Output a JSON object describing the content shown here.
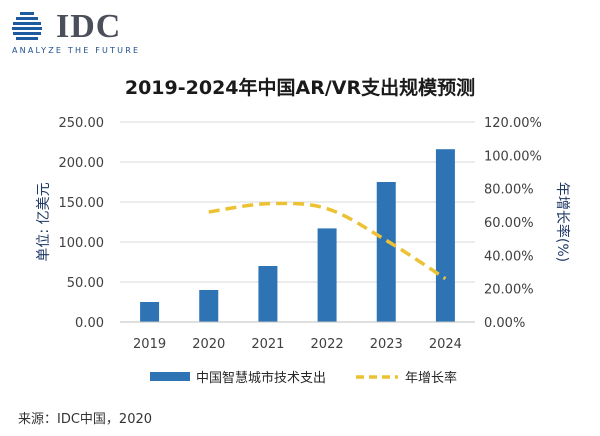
{
  "brand": {
    "name": "IDC",
    "tagline": "ANALYZE THE FUTURE",
    "color": "#1e5aa0"
  },
  "footer": {
    "source": "来源：IDC中国，2020"
  },
  "chart_data": {
    "type": "bar",
    "title": "2019-2024年中国AR/VR支出规模预测",
    "categories": [
      "2019",
      "2020",
      "2021",
      "2022",
      "2023",
      "2024"
    ],
    "ylabel": "单位: 亿美元",
    "y2label": "年增长率(%)",
    "ylim": [
      0,
      250
    ],
    "yticks": [
      "0.00",
      "50.00",
      "100.00",
      "150.00",
      "200.00",
      "250.00"
    ],
    "y2lim": [
      0,
      120
    ],
    "y2ticks": [
      "0.00%",
      "20.00%",
      "40.00%",
      "60.00%",
      "80.00%",
      "100.00%",
      "120.00%"
    ],
    "grid": true,
    "legend_position": "bottom",
    "series": [
      {
        "name": "中国智慧城市技术支出",
        "kind": "bar",
        "axis": "left",
        "color": "#2e74b5",
        "values": [
          25,
          40,
          70,
          117,
          175,
          216
        ]
      },
      {
        "name": "年增长率",
        "kind": "line",
        "axis": "right",
        "color": "#ecc234",
        "dash": true,
        "start_index": 1,
        "values": [
          null,
          66,
          71,
          68,
          49,
          26
        ]
      }
    ]
  }
}
